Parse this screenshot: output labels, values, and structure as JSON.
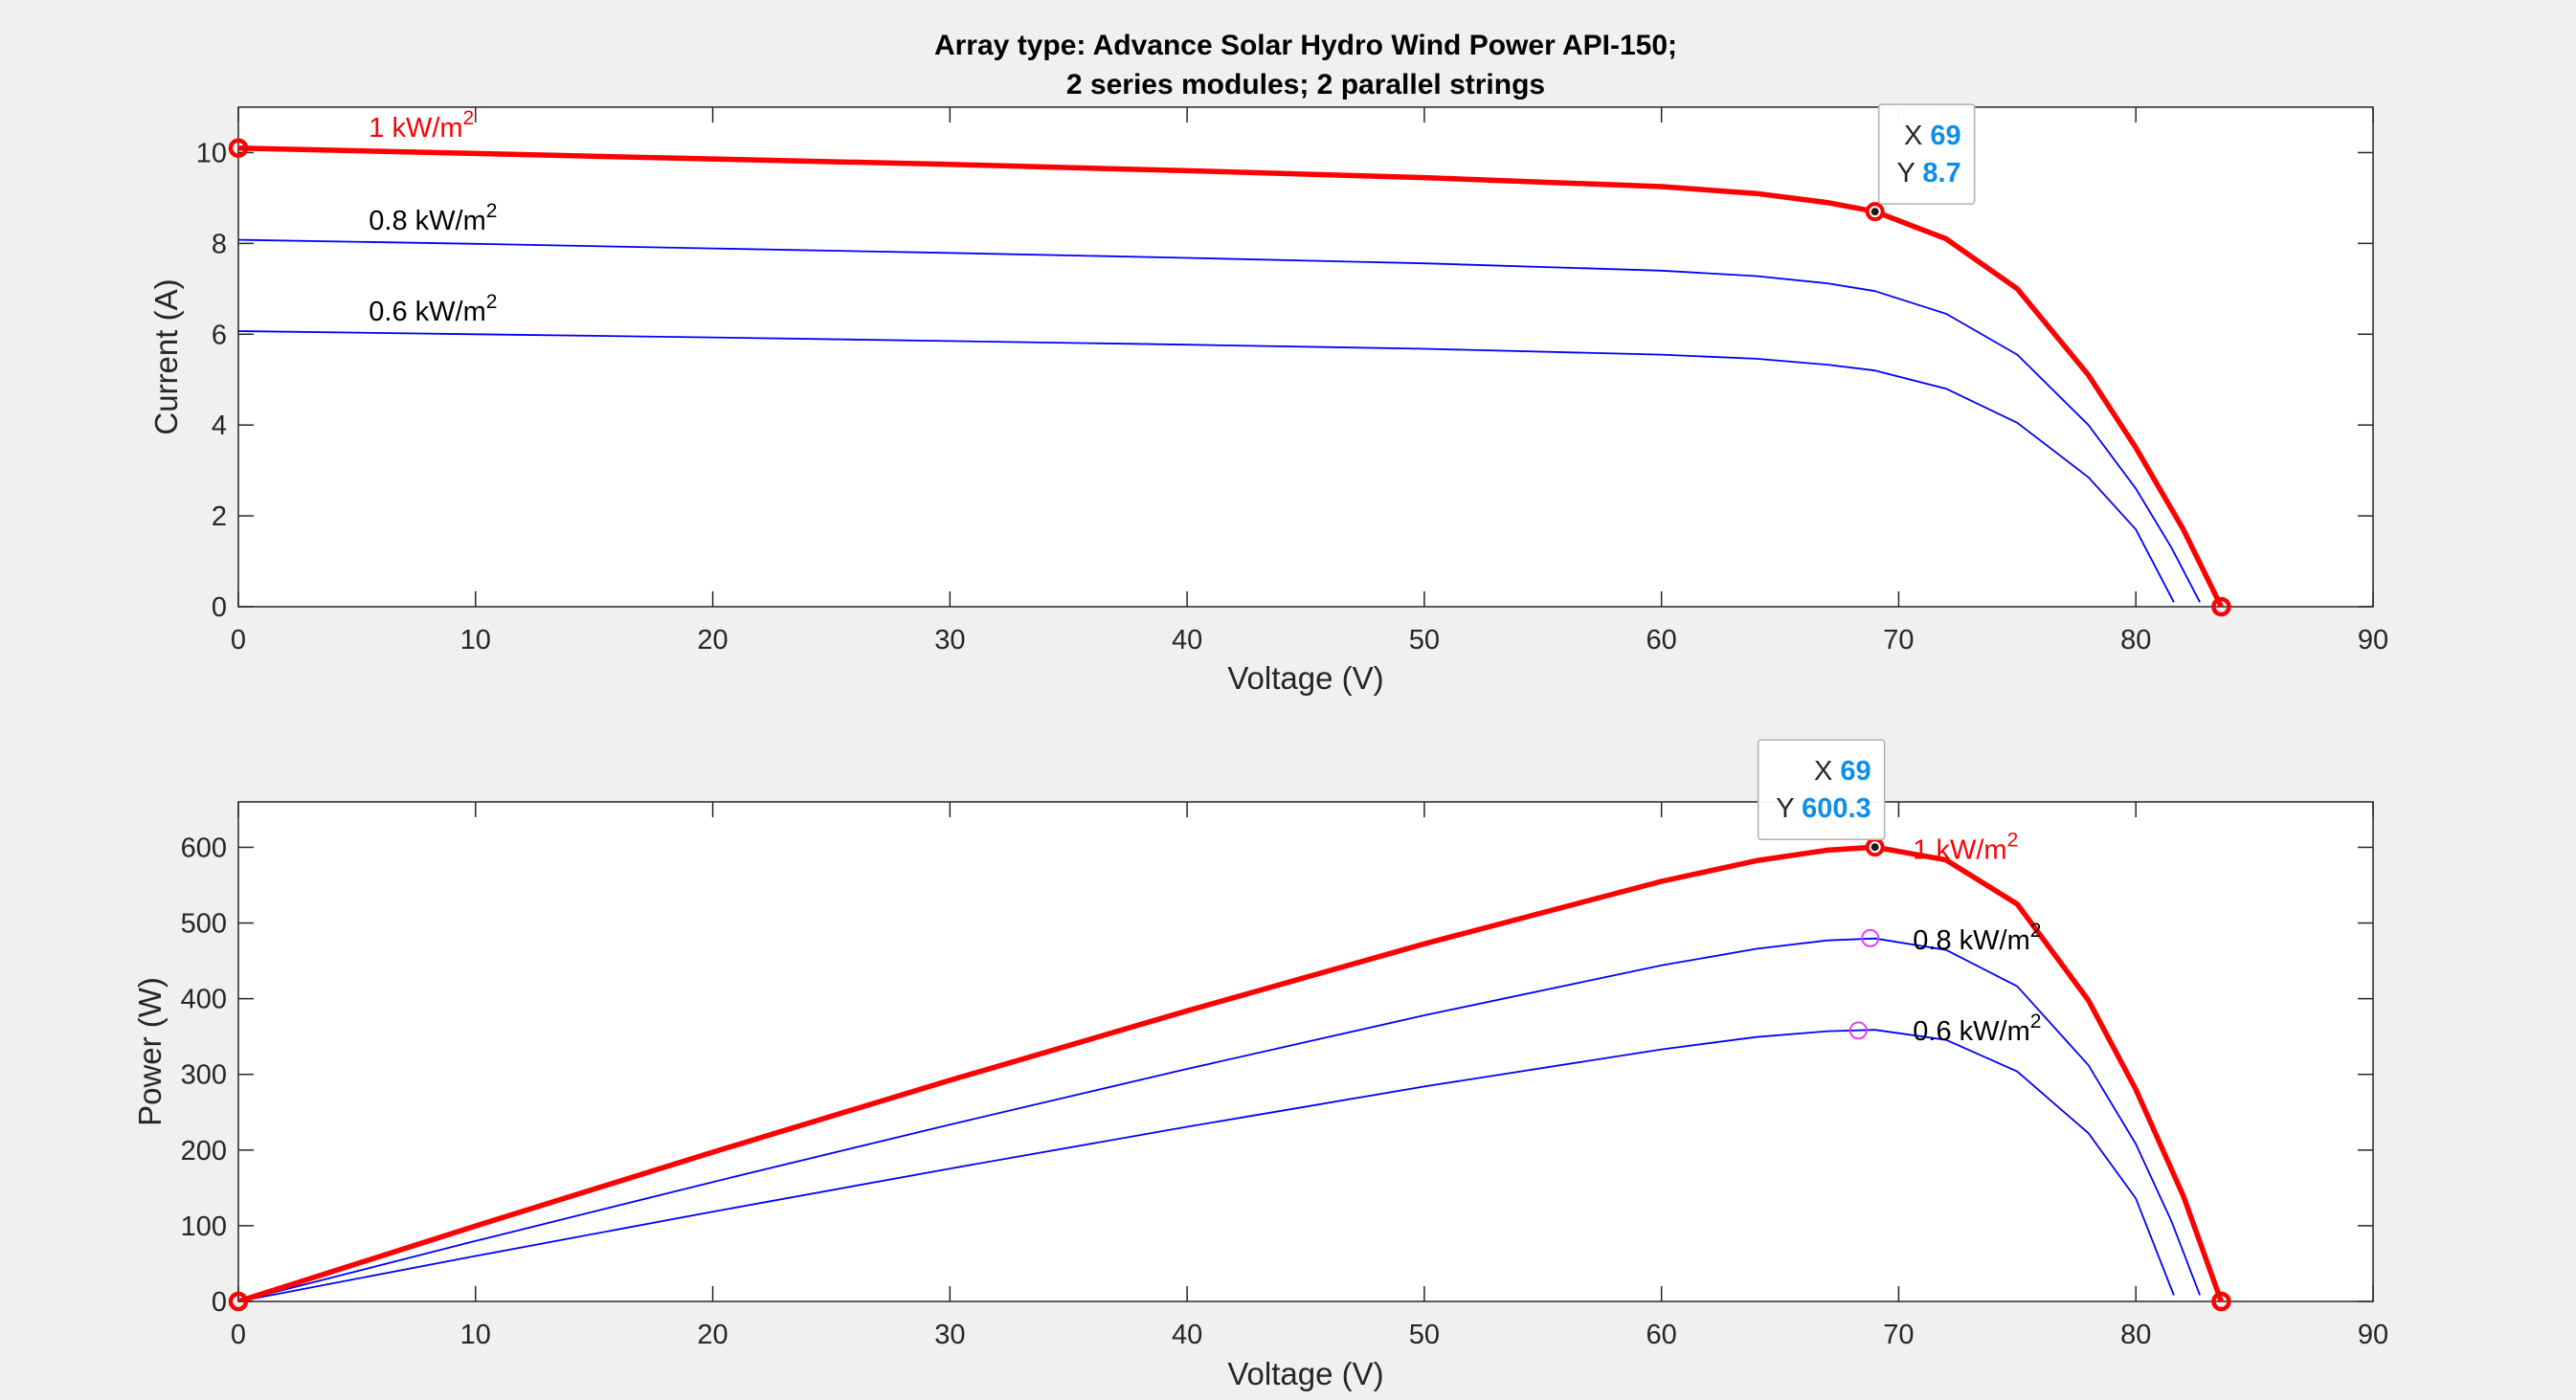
{
  "figure": {
    "title_line1": "Array type: Advance Solar Hydro Wind Power API-150;",
    "title_line2": "2 series modules; 2 parallel strings"
  },
  "colors": {
    "background": "#f0f0f0",
    "axes_bg": "#ffffff",
    "highlight": "#ff0000",
    "other": "#0000ff",
    "mpp_marker": "#e040fb",
    "datatip_value": "#0d8ee9"
  },
  "chart_data": [
    {
      "type": "line",
      "title": "",
      "xlabel": "Voltage (V)",
      "ylabel": "Current (A)",
      "xlim": [
        0,
        90
      ],
      "ylim": [
        0,
        11
      ],
      "xticks": [
        0,
        10,
        20,
        30,
        40,
        50,
        60,
        70,
        80,
        90
      ],
      "yticks": [
        0,
        2,
        4,
        6,
        8,
        10
      ],
      "grid": false,
      "series": [
        {
          "name": "1 kW/m2",
          "color": "#ff0000",
          "highlight": true,
          "x": [
            0,
            10,
            20,
            30,
            40,
            50,
            60,
            64,
            67,
            69,
            72,
            75,
            78,
            80,
            82,
            83.6
          ],
          "y": [
            10.1,
            9.98,
            9.86,
            9.74,
            9.6,
            9.45,
            9.25,
            9.1,
            8.9,
            8.7,
            8.1,
            7.0,
            5.1,
            3.5,
            1.7,
            0
          ]
        },
        {
          "name": "0.8 kW/m2",
          "color": "#0000ff",
          "highlight": false,
          "x": [
            0,
            10,
            20,
            30,
            40,
            50,
            60,
            64,
            67,
            69,
            72,
            75,
            78,
            80,
            81.5,
            82.7
          ],
          "y": [
            8.08,
            7.99,
            7.89,
            7.79,
            7.68,
            7.56,
            7.4,
            7.28,
            7.12,
            6.95,
            6.45,
            5.55,
            4.0,
            2.6,
            1.3,
            0.1
          ]
        },
        {
          "name": "0.6 kW/m2",
          "color": "#0000ff",
          "highlight": false,
          "x": [
            0,
            10,
            20,
            30,
            40,
            50,
            60,
            64,
            67,
            69,
            72,
            75,
            78,
            80,
            81.6
          ],
          "y": [
            6.07,
            6.0,
            5.93,
            5.85,
            5.77,
            5.68,
            5.55,
            5.46,
            5.33,
            5.2,
            4.8,
            4.05,
            2.85,
            1.7,
            0.1
          ]
        }
      ],
      "markers": [
        {
          "x": 0,
          "y": 10.1,
          "style": "circle"
        },
        {
          "x": 83.6,
          "y": 0,
          "style": "circle"
        },
        {
          "x": 69,
          "y": 8.7,
          "style": "datatip-dot"
        }
      ],
      "curve_labels": [
        {
          "text": "1 kW/m",
          "sup": "2",
          "x": 5.5,
          "y": 10.35,
          "color": "#ff0000"
        },
        {
          "text": "0.8 kW/m",
          "sup": "2",
          "x": 5.5,
          "y": 8.3,
          "color": "#000000"
        },
        {
          "text": "0.6 kW/m",
          "sup": "2",
          "x": 5.5,
          "y": 6.3,
          "color": "#000000"
        }
      ],
      "datatip": {
        "x": 69,
        "y": 8.7,
        "x_label": "X",
        "x_value": "69",
        "y_label": "Y",
        "y_value": "8.7"
      }
    },
    {
      "type": "line",
      "title": "",
      "xlabel": "Voltage (V)",
      "ylabel": "Power (W)",
      "xlim": [
        0,
        90
      ],
      "ylim": [
        0,
        660
      ],
      "xticks": [
        0,
        10,
        20,
        30,
        40,
        50,
        60,
        70,
        80,
        90
      ],
      "yticks": [
        0,
        100,
        200,
        300,
        400,
        500,
        600
      ],
      "grid": false,
      "series": [
        {
          "name": "1 kW/m2",
          "color": "#ff0000",
          "highlight": true,
          "x": [
            0,
            10,
            20,
            30,
            40,
            50,
            60,
            64,
            67,
            69,
            72,
            75,
            78,
            80,
            82,
            83.6
          ],
          "y": [
            0,
            99.8,
            197.2,
            292.2,
            384.0,
            472.5,
            555.0,
            582.4,
            596.3,
            600.3,
            583.2,
            525.0,
            397.8,
            280.0,
            139.4,
            0
          ]
        },
        {
          "name": "0.8 kW/m2",
          "color": "#0000ff",
          "highlight": false,
          "x": [
            0,
            10,
            20,
            30,
            40,
            50,
            60,
            64,
            67,
            69,
            72,
            75,
            78,
            80,
            81.5,
            82.7
          ],
          "y": [
            0,
            79.9,
            157.8,
            233.7,
            307.2,
            378.0,
            444.0,
            465.9,
            477.0,
            479.6,
            464.4,
            416.3,
            312.0,
            208.0,
            106.0,
            8.3
          ]
        },
        {
          "name": "0.6 kW/m2",
          "color": "#0000ff",
          "highlight": false,
          "x": [
            0,
            10,
            20,
            30,
            40,
            50,
            60,
            64,
            67,
            69,
            72,
            75,
            78,
            80,
            81.6
          ],
          "y": [
            0,
            60.0,
            118.6,
            175.5,
            230.8,
            284.0,
            333.0,
            349.4,
            357.1,
            358.8,
            345.6,
            303.8,
            222.3,
            136.0,
            8.2
          ]
        }
      ],
      "markers": [
        {
          "x": 0,
          "y": 0,
          "style": "circle"
        },
        {
          "x": 83.6,
          "y": 0,
          "style": "circle"
        },
        {
          "x": 69,
          "y": 600.3,
          "style": "datatip-dot"
        },
        {
          "x": 68.8,
          "y": 480,
          "style": "mpp"
        },
        {
          "x": 68.3,
          "y": 358,
          "style": "mpp"
        }
      ],
      "curve_labels": [
        {
          "text": "1 kW/m",
          "sup": "2",
          "x": 70.6,
          "y": 585,
          "color": "#ff0000"
        },
        {
          "text": "0.8 kW/m",
          "sup": "2",
          "x": 70.6,
          "y": 465,
          "color": "#000000"
        },
        {
          "text": "0.6 kW/m",
          "sup": "2",
          "x": 70.6,
          "y": 345,
          "color": "#000000"
        }
      ],
      "datatip": {
        "x": 69,
        "y": 600.3,
        "x_label": "X",
        "x_value": "69",
        "y_label": "Y",
        "y_value": "600.3"
      }
    }
  ]
}
